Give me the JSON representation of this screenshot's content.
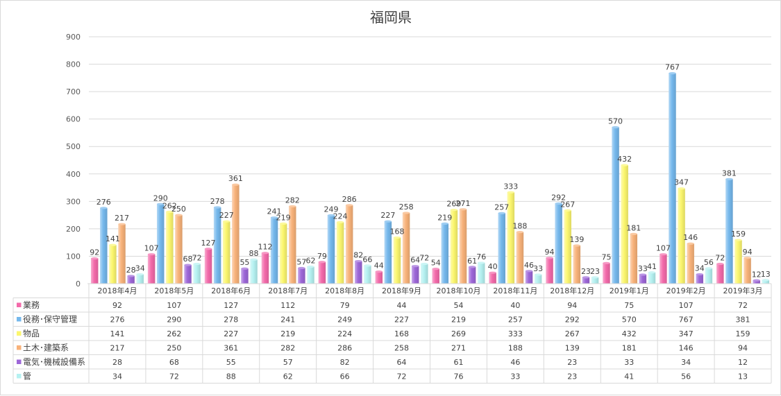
{
  "chart_data": {
    "type": "bar",
    "title": "福岡県",
    "categories": [
      "2018年4月",
      "2018年5月",
      "2018年6月",
      "2018年7月",
      "2018年8月",
      "2018年9月",
      "2018年10月",
      "2018年11月",
      "2018年12月",
      "2019年1月",
      "2019年2月",
      "2019年3月"
    ],
    "series": [
      {
        "name": "業務",
        "color": "#f36aaa",
        "values": [
          92,
          107,
          127,
          112,
          79,
          44,
          54,
          40,
          94,
          75,
          107,
          72
        ]
      },
      {
        "name": "役務･保守管理",
        "color": "#75b8ec",
        "values": [
          276,
          290,
          278,
          241,
          249,
          227,
          219,
          257,
          292,
          570,
          767,
          381
        ]
      },
      {
        "name": "物品",
        "color": "#fbf66e",
        "values": [
          141,
          262,
          227,
          219,
          224,
          168,
          269,
          333,
          267,
          432,
          347,
          159
        ]
      },
      {
        "name": "土木･建築系",
        "color": "#f8b27a",
        "values": [
          217,
          250,
          361,
          282,
          286,
          258,
          271,
          188,
          139,
          181,
          146,
          94
        ]
      },
      {
        "name": "電気･機械設備系",
        "color": "#9d67d8",
        "values": [
          28,
          68,
          55,
          57,
          82,
          64,
          61,
          46,
          23,
          33,
          34,
          12
        ]
      },
      {
        "name": "管",
        "color": "#b5f1f1",
        "values": [
          34,
          72,
          88,
          62,
          66,
          72,
          76,
          33,
          23,
          41,
          56,
          13
        ]
      }
    ],
    "ylim": [
      0,
      900
    ],
    "yticks": [
      "0",
      "100",
      "200",
      "300",
      "400",
      "500",
      "600",
      "700",
      "800",
      "900"
    ],
    "grid": true,
    "legend": "data-table"
  }
}
